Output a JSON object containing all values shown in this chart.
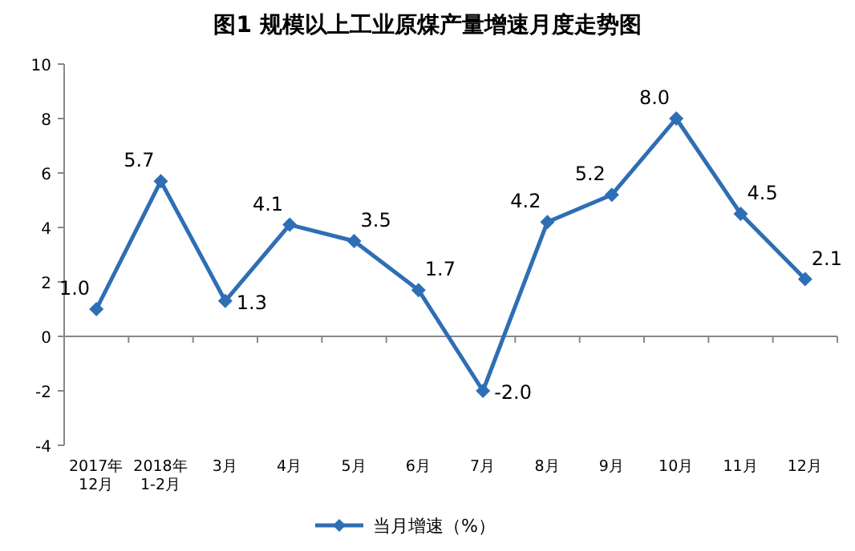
{
  "chart_data": {
    "type": "line",
    "title": "图1  规模以上工业原煤产量增速月度走势图",
    "categories": [
      "2017年\n12月",
      "2018年\n1-2月",
      "3月",
      "4月",
      "5月",
      "6月",
      "7月",
      "8月",
      "9月",
      "10月",
      "11月",
      "12月"
    ],
    "series": [
      {
        "name": "当月增速（%）",
        "color": "#2e6eb5",
        "values": [
          1.0,
          5.7,
          1.3,
          4.1,
          3.5,
          1.7,
          -2.0,
          4.2,
          5.2,
          8.0,
          4.5,
          2.1
        ],
        "value_labels": [
          "1.0",
          "5.7",
          "1.3",
          "4.1",
          "3.5",
          "1.7",
          "-2.0",
          "4.2",
          "5.2",
          "8.0",
          "4.5",
          "2.1"
        ]
      }
    ],
    "ylim": [
      -4,
      10
    ],
    "yticks": [
      -4,
      -2,
      0,
      2,
      4,
      6,
      8,
      10
    ],
    "marker": "diamond",
    "legend": "bottom"
  }
}
